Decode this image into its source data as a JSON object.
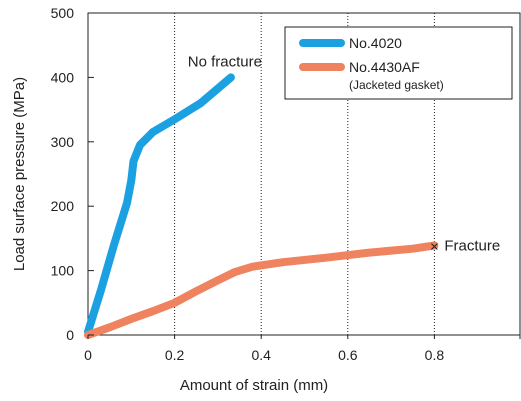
{
  "chart_data": {
    "type": "line",
    "xlabel": "Amount of strain (mm)",
    "ylabel": "Load surface pressure (MPa)",
    "xlim": [
      0,
      1.0
    ],
    "ylim": [
      0,
      500
    ],
    "x_ticks": [
      "0",
      "0.2",
      "0.4",
      "0.6",
      "0.8"
    ],
    "x_tick_values": [
      0,
      0.2,
      0.4,
      0.6,
      0.8
    ],
    "y_ticks": [
      "0",
      "100",
      "200",
      "300",
      "400",
      "500"
    ],
    "y_tick_values": [
      0,
      100,
      200,
      300,
      400,
      500
    ],
    "grid": "x",
    "legend_position": "top-right",
    "series": [
      {
        "name": "No.4020",
        "color": "#1ba1e2",
        "x": [
          0,
          0.03,
          0.06,
          0.09,
          0.1,
          0.105,
          0.12,
          0.15,
          0.2,
          0.26,
          0.33
        ],
        "y": [
          5,
          70,
          140,
          205,
          240,
          270,
          295,
          315,
          335,
          360,
          400
        ]
      },
      {
        "name": "No.4430AF",
        "name_sub": "(Jacketed gasket)",
        "color": "#ef8360",
        "x": [
          0,
          0.05,
          0.1,
          0.15,
          0.2,
          0.25,
          0.3,
          0.34,
          0.38,
          0.45,
          0.55,
          0.65,
          0.75,
          0.8
        ],
        "y": [
          0,
          12,
          25,
          37,
          50,
          68,
          85,
          98,
          106,
          113,
          120,
          128,
          134,
          139
        ]
      }
    ],
    "annotations": [
      {
        "text": "No fracture",
        "x": 0.33,
        "y": 400
      },
      {
        "text": "Fracture",
        "x": 0.8,
        "y": 139,
        "marker": "×"
      }
    ]
  }
}
